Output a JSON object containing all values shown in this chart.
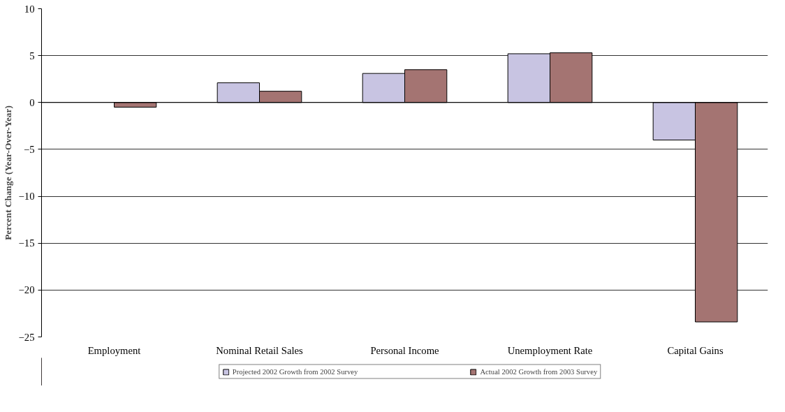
{
  "chart_data": {
    "type": "bar",
    "ylabel": "Percent Change (Year-Over-Year)",
    "categories": [
      "Employment",
      "Nominal Retail Sales",
      "Personal Income",
      "Unemployment Rate",
      "Capital Gains"
    ],
    "series": [
      {
        "name": "Projected 2002 Growth from 2002 Survey",
        "color": "#c8c4e2",
        "values": [
          null,
          2.1,
          3.1,
          5.2,
          -4.0
        ]
      },
      {
        "name": "Actual 2002 Growth from 2003 Survey",
        "color": "#a47472",
        "values": [
          -0.5,
          1.2,
          3.5,
          5.3,
          -23.4
        ]
      }
    ],
    "ylim": [
      -25,
      10
    ],
    "yticks": [
      -25,
      -20,
      -15,
      -10,
      -5,
      0,
      5,
      10
    ],
    "grid": "y",
    "legend": "bottom"
  }
}
